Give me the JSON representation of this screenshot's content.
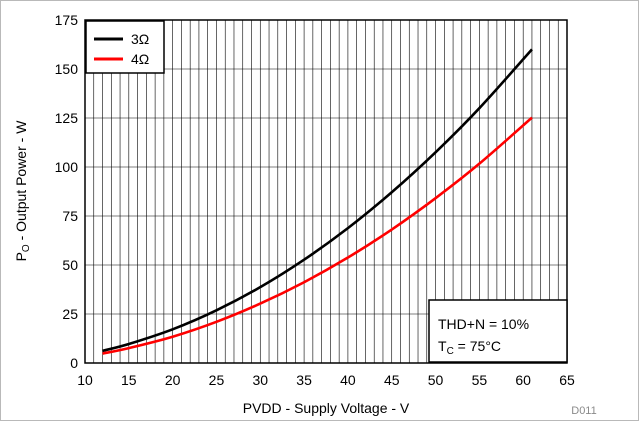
{
  "figure_id": "D011",
  "chart_data": {
    "type": "line",
    "xlabel": "PVDD - Supply Voltage - V",
    "ylabel": {
      "prefix": "P",
      "sub": "O",
      "suffix": " - Output Power - W"
    },
    "xlim": [
      10,
      65
    ],
    "ylim": [
      0,
      175
    ],
    "xticks": [
      10,
      15,
      20,
      25,
      30,
      35,
      40,
      45,
      50,
      55,
      60,
      65
    ],
    "yticks": [
      0,
      25,
      50,
      75,
      100,
      125,
      150,
      175
    ],
    "grid": {
      "minor_x_step": 1,
      "major_y_step": 25
    },
    "legend_position": "top-left",
    "series": [
      {
        "name": "3Ω",
        "color": "#000000",
        "x": [
          12,
          15,
          20,
          25,
          30,
          35,
          40,
          45,
          50,
          55,
          61
        ],
        "y": [
          6.2,
          9.7,
          17.2,
          26.9,
          38.7,
          52.7,
          68.8,
          87.1,
          107.5,
          130,
          160
        ]
      },
      {
        "name": "4Ω",
        "color": "#ff0000",
        "x": [
          12,
          15,
          20,
          25,
          30,
          35,
          40,
          45,
          50,
          55,
          61
        ],
        "y": [
          4.8,
          7.6,
          13.4,
          21,
          30.3,
          41.2,
          53.8,
          68.1,
          84.1,
          101.7,
          125.2
        ]
      }
    ],
    "annotation": {
      "line1": "THD+N = 10%",
      "line2_prefix": "T",
      "line2_sub": "C",
      "line2_suffix": " = 75°C"
    }
  }
}
